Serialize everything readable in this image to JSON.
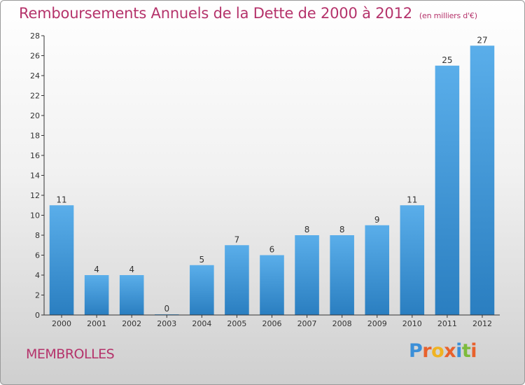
{
  "chart_data": {
    "type": "bar",
    "title": "Remboursements Annuels de la Dette de 2000 à 2012",
    "subtitle": "(en milliers d'€)",
    "categories": [
      "2000",
      "2001",
      "2002",
      "2003",
      "2004",
      "2005",
      "2006",
      "2007",
      "2008",
      "2009",
      "2010",
      "2011",
      "2012"
    ],
    "values": [
      11,
      4,
      4,
      0,
      5,
      7,
      6,
      8,
      8,
      9,
      11,
      25,
      27
    ],
    "ylim": [
      0,
      28
    ],
    "yticks": [
      0,
      2,
      4,
      6,
      8,
      10,
      12,
      14,
      16,
      18,
      20,
      22,
      24,
      26,
      28
    ],
    "bar_color_top": "#5aaeea",
    "bar_color_bottom": "#2a7ec0",
    "grid": false
  },
  "footer": {
    "commune": "MEMBROLLES",
    "logo_letters": [
      {
        "char": "P",
        "color": "#3b8fd8"
      },
      {
        "char": "r",
        "color": "#e8612c"
      },
      {
        "char": "o",
        "color": "#f0b322"
      },
      {
        "char": "x",
        "color": "#e8612c"
      },
      {
        "char": "i",
        "color": "#3b8fd8"
      },
      {
        "char": "t",
        "color": "#7dbb3c"
      },
      {
        "char": "i",
        "color": "#e8612c"
      }
    ]
  }
}
